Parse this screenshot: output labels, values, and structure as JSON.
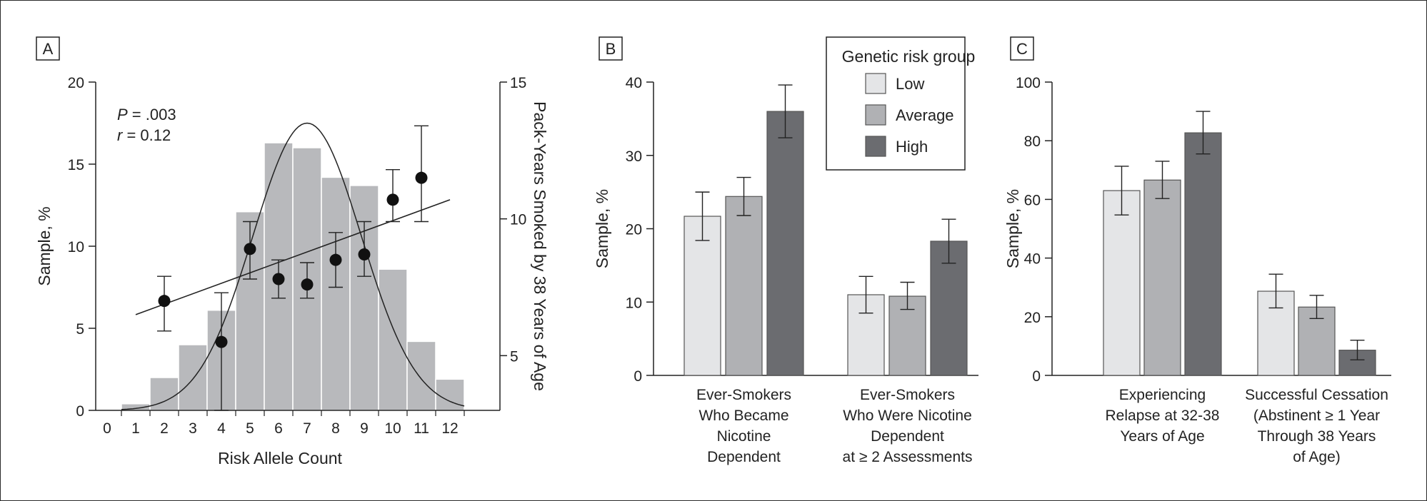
{
  "chart_data": [
    {
      "panel": "A",
      "type": "bar",
      "subtype": "histogram with overlaid normal curve, scatter means with error bars and regression line",
      "xlabel": "Risk Allele Count",
      "ylabel": "Sample, %",
      "y2label": "Pack-Years Smoked by 38 Years of Age",
      "ylim": [
        0,
        20
      ],
      "yticks": [
        0,
        5,
        10,
        15,
        20
      ],
      "y2lim": [
        3,
        15
      ],
      "y2ticks": [
        5,
        10,
        15
      ],
      "xticks": [
        0,
        1,
        2,
        3,
        4,
        5,
        6,
        7,
        8,
        9,
        10,
        11,
        12
      ],
      "annotations": {
        "p_label": "P",
        "p_value": " = .003",
        "r_label": "r",
        "r_value": " = 0.12"
      },
      "histogram": {
        "bins": [
          1,
          2,
          3,
          4,
          5,
          6,
          7,
          8,
          9,
          10,
          11,
          12
        ],
        "values": [
          0.4,
          2.0,
          4.0,
          6.1,
          12.1,
          16.3,
          16.0,
          14.2,
          13.7,
          8.6,
          4.2,
          1.9
        ]
      },
      "means": {
        "x": [
          2,
          4,
          5,
          6,
          7,
          8,
          9,
          10,
          11
        ],
        "y": [
          7.0,
          5.5,
          8.9,
          7.8,
          7.6,
          8.5,
          8.7,
          10.7,
          11.5
        ],
        "lower": [
          5.9,
          3.0,
          7.8,
          7.1,
          7.1,
          7.5,
          7.9,
          9.9,
          9.9
        ],
        "upper": [
          7.9,
          7.3,
          9.9,
          8.5,
          8.4,
          9.5,
          9.9,
          11.8,
          13.4
        ]
      },
      "regression_line": {
        "x": [
          1,
          12
        ],
        "y": [
          6.5,
          10.7
        ]
      },
      "normal_curve": {
        "mean": 7.0,
        "sd": 1.9,
        "peak": 17.5
      }
    },
    {
      "panel": "B",
      "type": "bar",
      "ylabel": "Sample, %",
      "ylim": [
        0,
        40
      ],
      "yticks": [
        0,
        10,
        20,
        30,
        40
      ],
      "categories": [
        [
          "Ever-Smokers",
          "Who Became",
          "Nicotine",
          "Dependent"
        ],
        [
          "Ever-Smokers",
          "Who Were Nicotine",
          "Dependent",
          "at ≥ 2 Assessments"
        ]
      ],
      "series": [
        {
          "name": "Low",
          "values": [
            21.7,
            11.0
          ],
          "lower": [
            18.4,
            8.5
          ],
          "upper": [
            25.0,
            13.5
          ]
        },
        {
          "name": "Average",
          "values": [
            24.4,
            10.8
          ],
          "lower": [
            21.8,
            9.0
          ],
          "upper": [
            27.0,
            12.7
          ]
        },
        {
          "name": "High",
          "values": [
            36.0,
            18.3
          ],
          "lower": [
            32.4,
            15.3
          ],
          "upper": [
            39.6,
            21.3
          ]
        }
      ]
    },
    {
      "panel": "C",
      "type": "bar",
      "ylabel": "Sample, %",
      "ylim": [
        0,
        100
      ],
      "yticks": [
        0,
        20,
        40,
        60,
        80,
        100
      ],
      "categories": [
        [
          "Experiencing",
          "Relapse at 32-38",
          "Years of Age"
        ],
        [
          "Successful Cessation",
          "(Abstinent ≥ 1 Year",
          "Through 38 Years",
          "of Age)"
        ]
      ],
      "series": [
        {
          "name": "Low",
          "values": [
            63.0,
            28.7
          ],
          "lower": [
            54.7,
            23.0
          ],
          "upper": [
            71.3,
            34.5
          ]
        },
        {
          "name": "Average",
          "values": [
            66.6,
            23.3
          ],
          "lower": [
            60.3,
            19.4
          ],
          "upper": [
            73.0,
            27.3
          ]
        },
        {
          "name": "High",
          "values": [
            82.7,
            8.6
          ],
          "lower": [
            75.5,
            5.3
          ],
          "upper": [
            90.0,
            12.0
          ]
        }
      ]
    }
  ],
  "legend": {
    "title": "Genetic risk group",
    "items": [
      {
        "label": "Low",
        "color": "#e4e5e7"
      },
      {
        "label": "Average",
        "color": "#b0b1b4"
      },
      {
        "label": "High",
        "color": "#6b6c70"
      }
    ],
    "placement": "top, between panels B and C"
  },
  "colors": {
    "histogram": "#b8b9bc",
    "axis": "#222222"
  }
}
